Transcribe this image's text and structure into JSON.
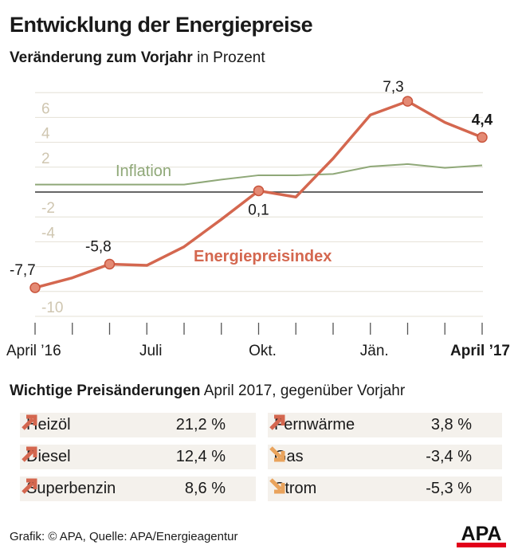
{
  "title": "Entwicklung der Energiepreise",
  "subtitle_bold": "Veränderung zum Vorjahr",
  "subtitle_rest": " in Prozent",
  "chart_data": {
    "type": "line",
    "title": "Entwicklung der Energiepreise",
    "subtitle": "Veränderung zum Vorjahr in Prozent",
    "x": [
      "Apr 16",
      "Mai 16",
      "Jun 16",
      "Jul 16",
      "Aug 16",
      "Sep 16",
      "Okt 16",
      "Nov 16",
      "Dez 16",
      "Jän 17",
      "Feb 17",
      "Mär 17",
      "Apr 17"
    ],
    "x_tick_labels": [
      {
        "i": 0,
        "label": "April ’16"
      },
      {
        "i": 3,
        "label": "Juli"
      },
      {
        "i": 6,
        "label": "Okt."
      },
      {
        "i": 9,
        "label": "Jän."
      },
      {
        "i": 12,
        "label": "April ’17",
        "bold": true
      }
    ],
    "y_ticks": [
      6,
      4,
      2,
      -2,
      -4,
      -10
    ],
    "ylim": [
      -10,
      8
    ],
    "grid": true,
    "series": [
      {
        "name": "Energiepreisindex",
        "color": "#d4674f",
        "values": [
          -7.7,
          -6.9,
          -5.8,
          -5.9,
          -4.4,
          -2.2,
          0.1,
          -0.4,
          2.7,
          6.2,
          7.3,
          5.6,
          4.4
        ],
        "labels": [
          {
            "i": 0,
            "text": "-7,7"
          },
          {
            "i": 2,
            "text": "-5,8"
          },
          {
            "i": 6,
            "text": "0,1"
          },
          {
            "i": 10,
            "text": "7,3"
          },
          {
            "i": 12,
            "text": "4,4",
            "bold": true
          }
        ]
      },
      {
        "name": "Inflation",
        "color": "#8fa878",
        "values": [
          0.6,
          0.6,
          0.6,
          0.6,
          0.6,
          1.0,
          1.35,
          1.35,
          1.45,
          2.05,
          2.25,
          1.95,
          2.15
        ]
      }
    ]
  },
  "table": {
    "heading_bold": "Wichtige Preisänderungen",
    "heading_rest": " April 2017, gegenüber Vorjahr",
    "rows": [
      {
        "name": "Heizöl",
        "value": "21,2 %",
        "dir": "up"
      },
      {
        "name": "Diesel",
        "value": "12,4 %",
        "dir": "up"
      },
      {
        "name": "Superbenzin",
        "value": "8,6 %",
        "dir": "up"
      },
      {
        "name": "Fernwärme",
        "value": "3,8 %",
        "dir": "up"
      },
      {
        "name": "Gas",
        "value": "-3,4 %",
        "dir": "down"
      },
      {
        "name": "Strom",
        "value": "-5,3 %",
        "dir": "down"
      }
    ],
    "colors": {
      "up": "#d4674f",
      "down": "#e9a35c"
    }
  },
  "footer": "Grafik: © APA, Quelle: APA/Energieagentur",
  "logo": "APA"
}
